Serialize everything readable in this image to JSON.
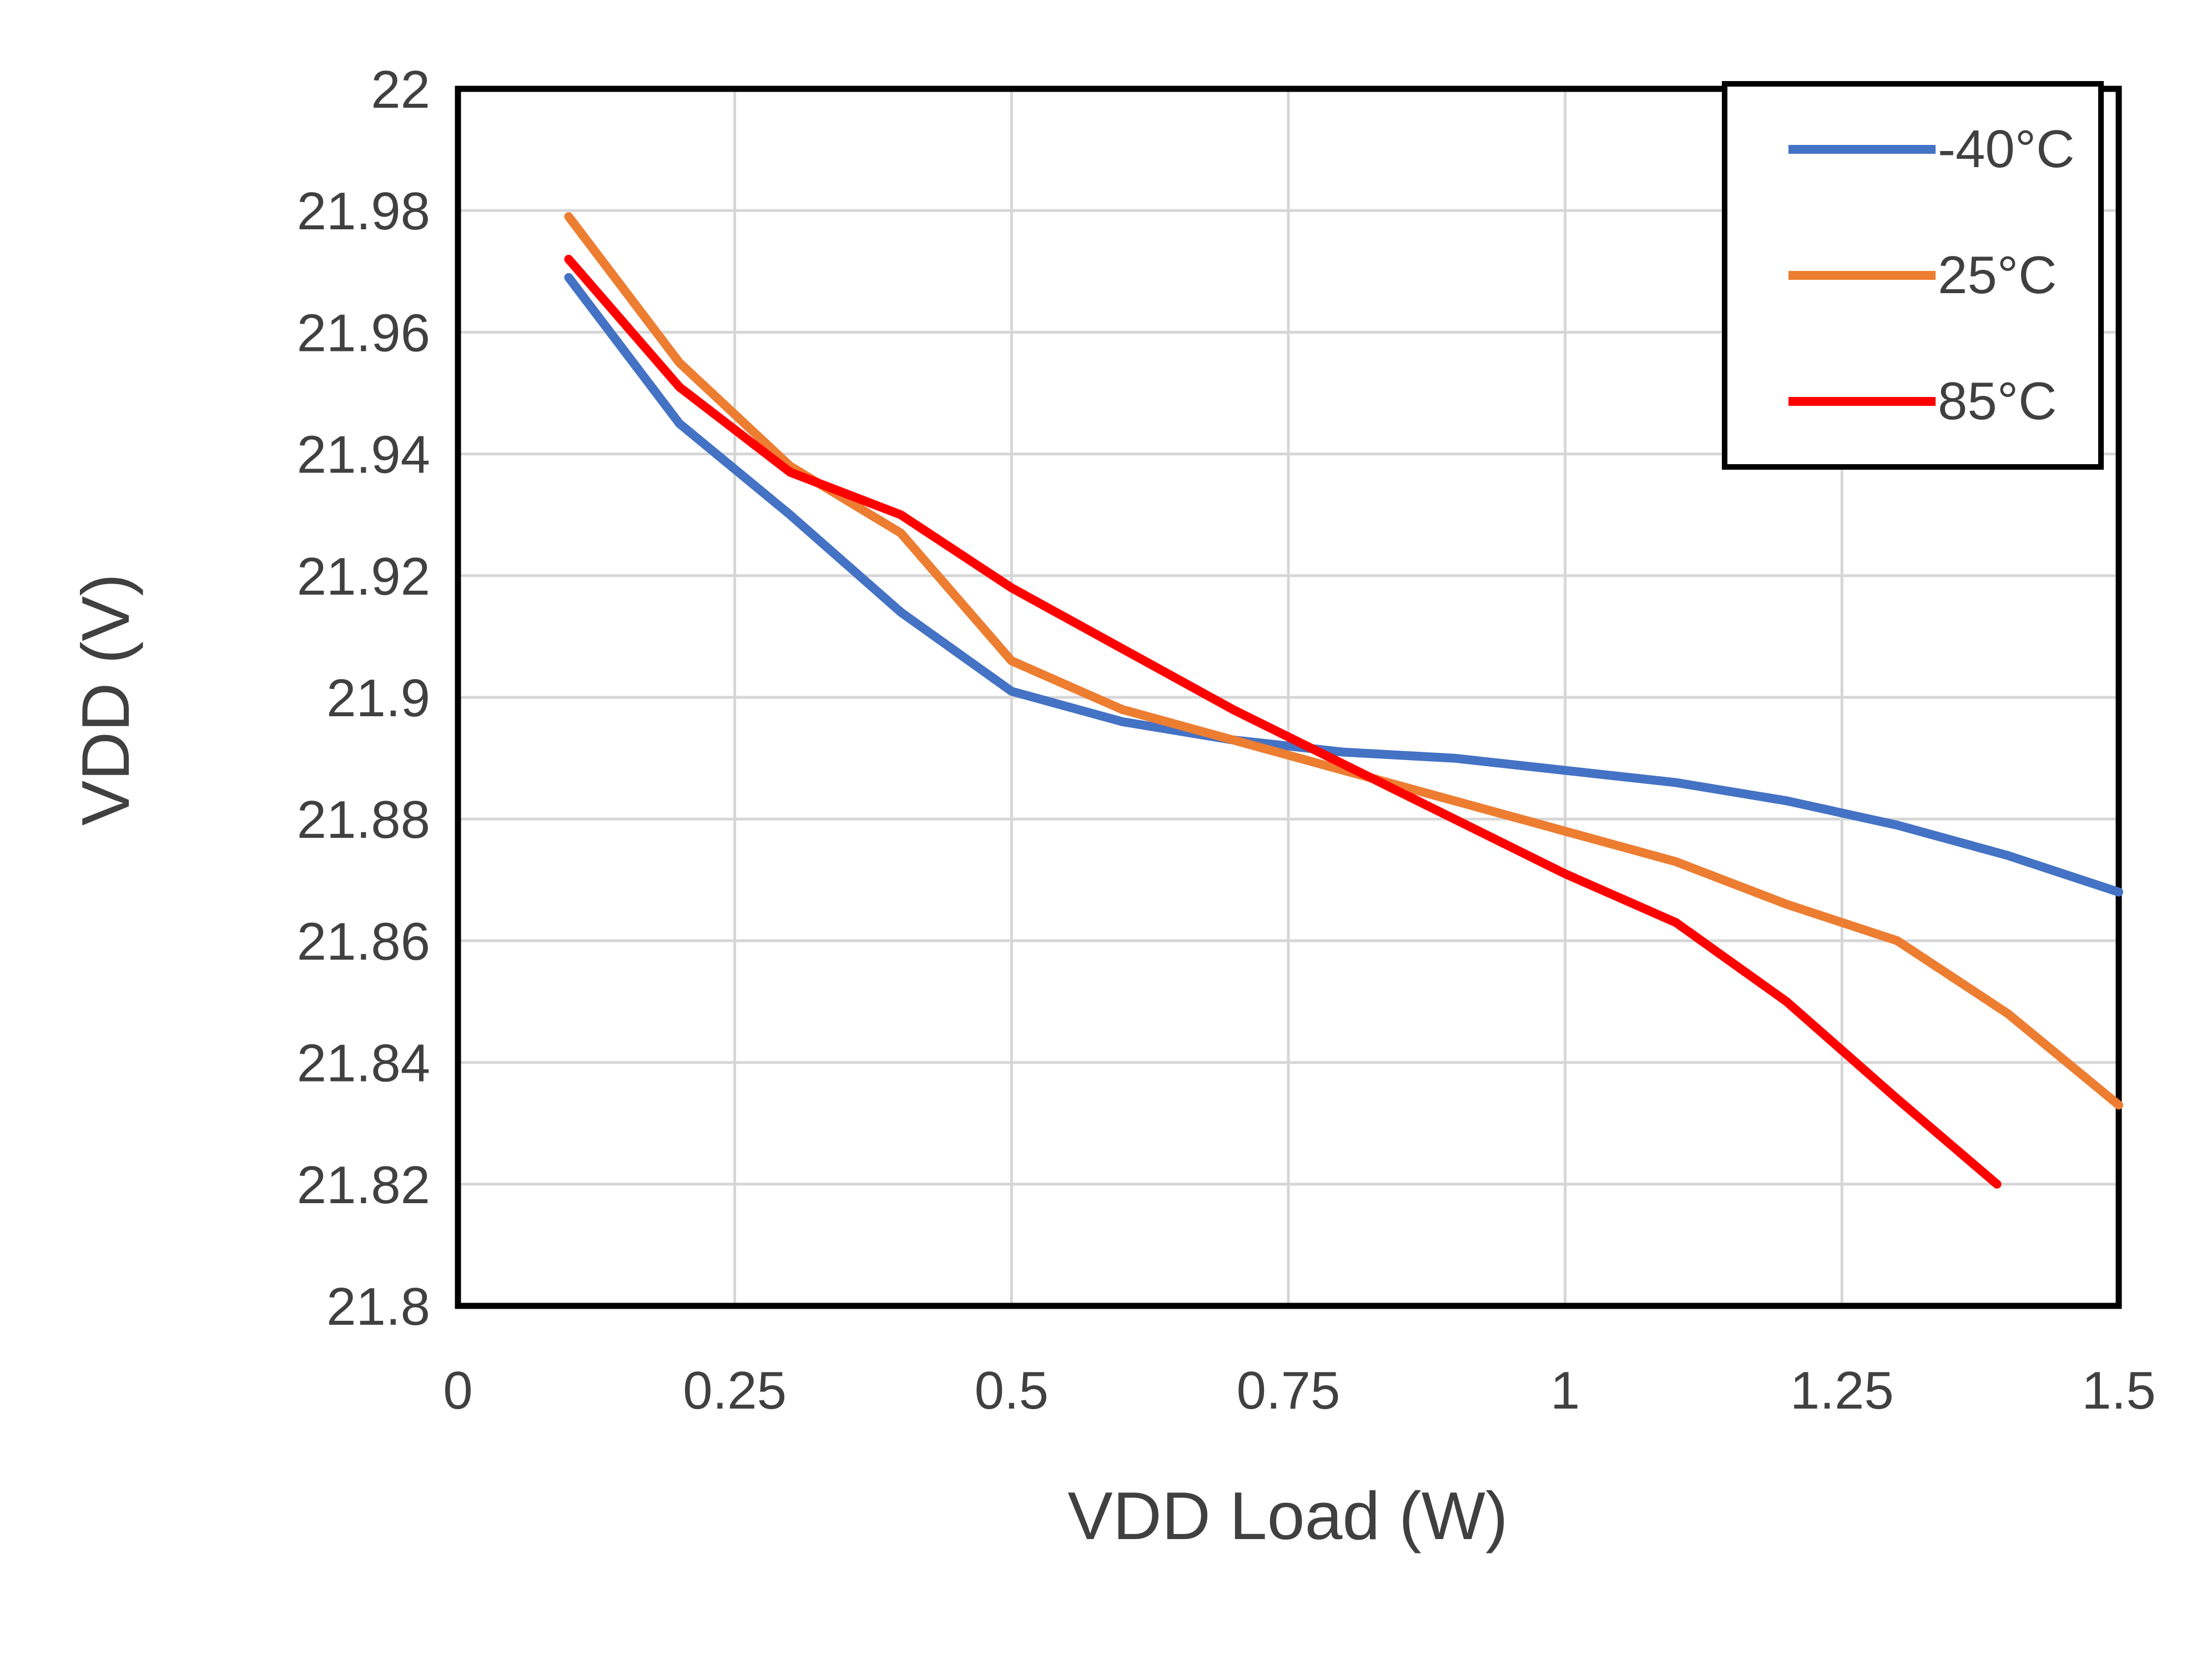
{
  "background_color": "#FFFFFF",
  "chart_data": {
    "type": "line",
    "title": "",
    "xlabel": "VDD Load (W)",
    "ylabel": "VDD (V)",
    "xlim": [
      0,
      1.5
    ],
    "ylim": [
      21.8,
      22
    ],
    "grid": "both",
    "grid_color": "#D6D6D6",
    "axis_border_color": "#000000",
    "tick_label_color": "#404040",
    "legend_position": "top-right",
    "xticks": [
      0,
      0.25,
      0.5,
      0.75,
      1,
      1.25,
      1.5
    ],
    "xtick_labels": [
      "0",
      "0.25",
      "0.5",
      "0.75",
      "1",
      "1.25",
      "1.5"
    ],
    "yticks": [
      21.8,
      21.82,
      21.84,
      21.86,
      21.88,
      21.9,
      21.92,
      21.94,
      21.96,
      21.98,
      22
    ],
    "ytick_labels": [
      "21.8",
      "21.82",
      "21.84",
      "21.86",
      "21.88",
      "21.9",
      "21.92",
      "21.94",
      "21.96",
      "21.98",
      "22"
    ],
    "series": [
      {
        "name": "-40°C",
        "color": "#4472C4",
        "x": [
          0.1,
          0.2,
          0.3,
          0.4,
          0.5,
          0.6,
          0.7,
          0.8,
          0.9,
          1.0,
          1.1,
          1.2,
          1.3,
          1.4,
          1.5
        ],
        "values": [
          21.969,
          21.945,
          21.93,
          21.914,
          21.901,
          21.896,
          21.893,
          21.891,
          21.89,
          21.888,
          21.886,
          21.883,
          21.879,
          21.874,
          21.868
        ]
      },
      {
        "name": "25°C",
        "color": "#ED7D31",
        "x": [
          0.1,
          0.2,
          0.3,
          0.4,
          0.5,
          0.6,
          0.7,
          0.8,
          0.9,
          1.0,
          1.1,
          1.2,
          1.3,
          1.4,
          1.5
        ],
        "values": [
          21.979,
          21.955,
          21.938,
          21.927,
          21.906,
          21.898,
          21.893,
          21.888,
          21.883,
          21.878,
          21.873,
          21.866,
          21.86,
          21.848,
          21.833
        ]
      },
      {
        "name": "85°C",
        "color": "#FF0000",
        "x": [
          0.1,
          0.2,
          0.3,
          0.4,
          0.5,
          0.6,
          0.7,
          0.8,
          0.9,
          1.0,
          1.1,
          1.2,
          1.3,
          1.39
        ],
        "values": [
          21.972,
          21.951,
          21.937,
          21.93,
          21.918,
          21.908,
          21.898,
          21.889,
          21.88,
          21.871,
          21.863,
          21.85,
          21.834,
          21.82
        ]
      }
    ]
  }
}
